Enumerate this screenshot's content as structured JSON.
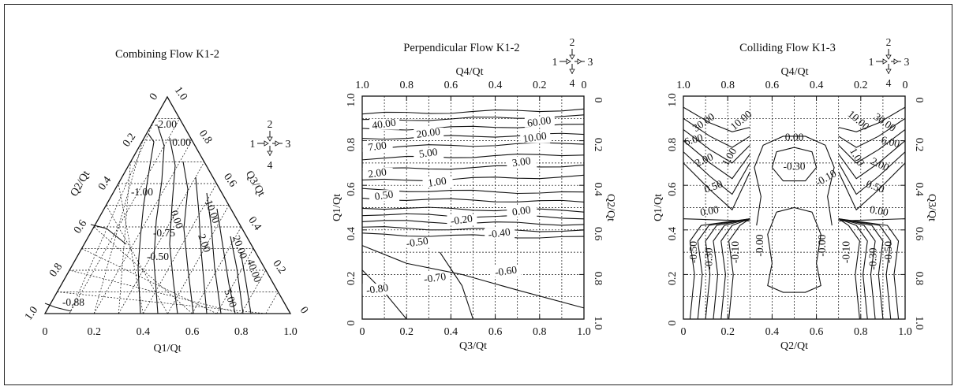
{
  "panels": [
    {
      "id": "combining",
      "title": "Combining Flow K1-2",
      "type": "ternary-contour",
      "axis_bottom_label": "Q1/Qt",
      "axis_left_label": "Q2/Qt",
      "axis_right_label": "Q3/Qt",
      "bottom_ticks": [
        "0",
        "0.2",
        "0.4",
        "0.6",
        "0.8",
        "1.0"
      ],
      "left_ticks": [
        "1.0",
        "0.8",
        "0.6",
        "0.4",
        "0.2",
        "0"
      ],
      "right_ticks": [
        "1.0",
        "0.8",
        "0.6",
        "0.4",
        "0.2",
        "0"
      ],
      "contour_labels": [
        "-2.00",
        "0.00",
        "-1.00",
        "-0.75",
        "-0.50",
        "0.00",
        "10.00",
        "2.00",
        "20.00",
        "40.00",
        "5.00",
        "-0.88"
      ],
      "branch_icon": {
        "top": "2",
        "left": "1",
        "right": "3",
        "bottom": "4"
      }
    },
    {
      "id": "perpendicular",
      "title": "Perpendicular Flow K1-2",
      "type": "contour",
      "xlabel": "Q3/Qt",
      "top_label": "Q4/Qt",
      "ylabel_left": "Q1/Qt",
      "ylabel_right": "Q2/Qt",
      "x_ticks": [
        "0",
        "0.2",
        "0.4",
        "0.6",
        "0.8",
        "1.0"
      ],
      "top_ticks": [
        "1.0",
        "0.8",
        "0.6",
        "0.4",
        "0.2",
        "0"
      ],
      "y_ticks": [
        "0",
        "0.2",
        "0.4",
        "0.6",
        "0.8",
        "1.0"
      ],
      "right_ticks": [
        "1.0",
        "0.8",
        "0.6",
        "0.4",
        "0.2",
        "0"
      ],
      "contour_labels": [
        "40.00",
        "60.00",
        "20.00",
        "10.00",
        "7.00",
        "5.00",
        "3.00",
        "2.00",
        "1.00",
        "0.50",
        "0.00",
        "-0.20",
        "-0.40",
        "-0.50",
        "-0.60",
        "-0.70",
        "-0.80"
      ],
      "branch_icon": {
        "top": "2",
        "left": "1",
        "right": "3",
        "bottom": "4"
      }
    },
    {
      "id": "colliding",
      "title": "Colliding Flow K1-3",
      "type": "contour",
      "xlabel": "Q2/Qt",
      "top_label": "Q4/Qt",
      "ylabel_left": "Q1/Qt",
      "ylabel_right": "Q3/Qt",
      "x_ticks": [
        "0",
        "0.2",
        "0.4",
        "0.6",
        "0.8",
        "1.0"
      ],
      "top_ticks": [
        "1.0",
        "0.8",
        "0.6",
        "0.4",
        "0.2",
        "0"
      ],
      "y_ticks": [
        "0",
        "0.2",
        "0.4",
        "0.6",
        "0.8",
        "1.0"
      ],
      "right_ticks": [
        "1.0",
        "0.8",
        "0.6",
        "0.4",
        "0.2",
        "0"
      ],
      "contour_labels": [
        "30.00",
        "10.00",
        "30.00",
        "10.00",
        "0.00",
        "-0.30",
        "-0.10",
        "6.00",
        "2.00",
        "1.00",
        "0.50",
        "0.00",
        "6.00",
        "2.00",
        "1.00",
        "0.50",
        "0.00",
        "-0.50",
        "-0.30",
        "-0.10",
        "-0.00",
        "-0.00",
        "-0.10",
        "-0.30",
        "-0.50"
      ],
      "branch_icon": {
        "top": "2",
        "left": "1",
        "right": "3",
        "bottom": "4"
      }
    }
  ],
  "chart_data": [
    {
      "type": "heatmap",
      "title": "Combining Flow K1-2",
      "xlabel": "Q1/Qt",
      "axes": [
        "Q1/Qt",
        "Q2/Qt",
        "Q3/Qt"
      ],
      "xlim": [
        0,
        1
      ],
      "contour_levels": [
        -2.0,
        -1.0,
        -0.88,
        -0.75,
        -0.5,
        0.0,
        2.0,
        5.0,
        10.0,
        20.0,
        40.0
      ]
    },
    {
      "type": "heatmap",
      "title": "Perpendicular Flow K1-2",
      "xlabel": "Q3/Qt",
      "ylabel": "Q1/Qt",
      "xlim": [
        0,
        1
      ],
      "ylim": [
        0,
        1
      ],
      "grid": true,
      "contour_levels": [
        -0.8,
        -0.7,
        -0.6,
        -0.5,
        -0.4,
        -0.2,
        0.0,
        0.5,
        1.0,
        2.0,
        3.0,
        5.0,
        7.0,
        10.0,
        20.0,
        40.0,
        60.0
      ]
    },
    {
      "type": "heatmap",
      "title": "Colliding Flow K1-3",
      "xlabel": "Q2/Qt",
      "ylabel": "Q1/Qt",
      "xlim": [
        0,
        1
      ],
      "ylim": [
        0,
        1
      ],
      "grid": true,
      "contour_levels": [
        -0.5,
        -0.3,
        -0.1,
        0.0,
        0.5,
        1.0,
        2.0,
        6.0,
        10.0,
        30.0
      ]
    }
  ]
}
